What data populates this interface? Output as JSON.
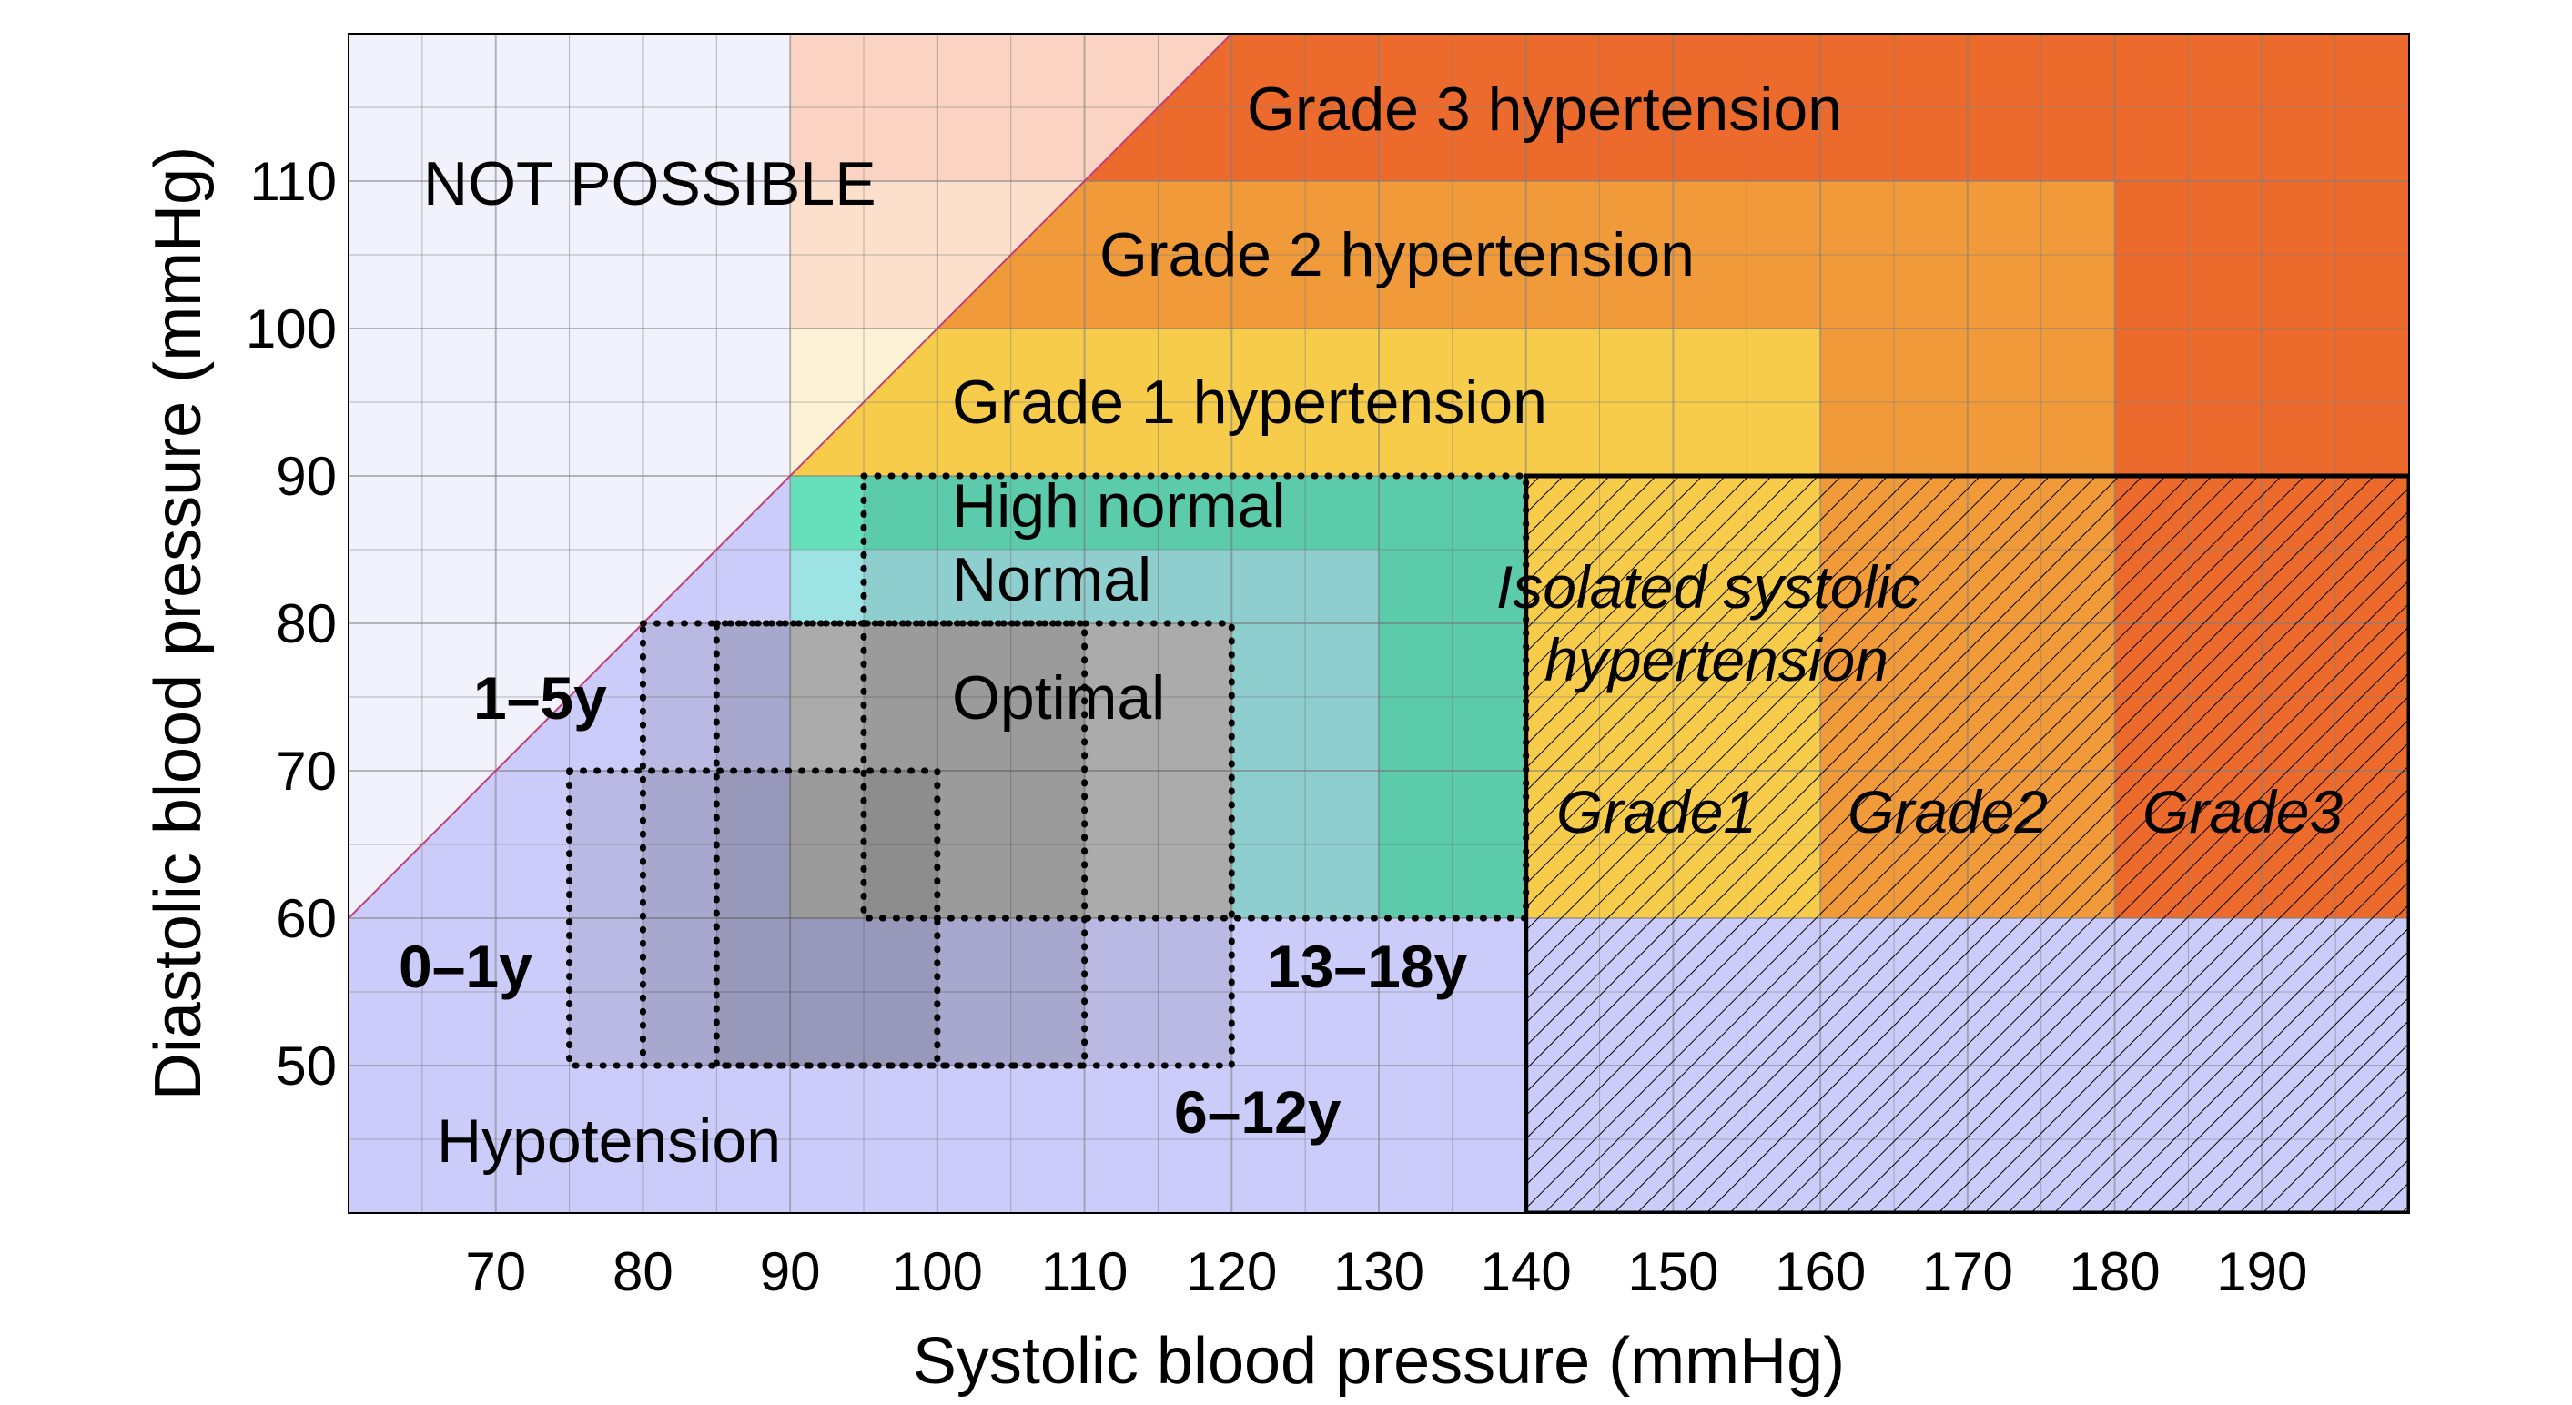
{
  "chart_data": {
    "type": "heatmap",
    "xlabel": "Systolic blood pressure (mmHg)",
    "ylabel": "Diastolic blood pressure (mmHg)",
    "xlim": [
      60,
      200
    ],
    "ylim": [
      40,
      120
    ],
    "x_ticks": [
      "70",
      "80",
      "90",
      "100",
      "110",
      "120",
      "130",
      "140",
      "150",
      "160",
      "170",
      "180",
      "190"
    ],
    "y_ticks": [
      "50",
      "60",
      "70",
      "80",
      "90",
      "100",
      "110"
    ],
    "grid": true,
    "regions": [
      {
        "label": "Hypotension",
        "x": [
          60,
          200
        ],
        "y": [
          40,
          60
        ],
        "color": "#ccccfa"
      },
      {
        "label": "Optimal",
        "x": [
          90,
          120
        ],
        "y": [
          60,
          80
        ],
        "color": "#cfcfcf"
      },
      {
        "label": "Normal",
        "x": [
          90,
          130
        ],
        "y": [
          60,
          85
        ],
        "color": "#9ee3e3"
      },
      {
        "label": "High normal",
        "x": [
          90,
          140
        ],
        "y": [
          60,
          90
        ],
        "color": "#66e0bb"
      },
      {
        "label": "Grade 1 hypertension",
        "x": [
          90,
          160
        ],
        "y": [
          60,
          100
        ],
        "color": "#f7cc4b"
      },
      {
        "label": "Grade 2 hypertension",
        "x": [
          90,
          180
        ],
        "y": [
          60,
          110
        ],
        "color": "#f09a3a"
      },
      {
        "label": "Grade 3 hypertension",
        "x": [
          90,
          200
        ],
        "y": [
          60,
          120
        ],
        "color": "#ec6a2c"
      },
      {
        "label": "NOT POSSIBLE",
        "boundary": "diastolic > systolic - 60"
      }
    ],
    "isolated_systolic_hypertension": {
      "label": "Isolated systolic hypertension",
      "x": [
        140,
        200
      ],
      "y": [
        40,
        90
      ],
      "grades": [
        "Grade1",
        "Grade2",
        "Grade3"
      ]
    },
    "age_groups": [
      {
        "label": "0–1y",
        "x": [
          75,
          100
        ],
        "y": [
          50,
          70
        ]
      },
      {
        "label": "1–5y",
        "x": [
          80,
          110
        ],
        "y": [
          50,
          80
        ]
      },
      {
        "label": "6–12y",
        "x": [
          85,
          120
        ],
        "y": [
          50,
          80
        ]
      },
      {
        "label": "13–18y",
        "x": [
          95,
          140
        ],
        "y": [
          60,
          90
        ]
      }
    ]
  },
  "colors": {
    "not_possible": "#f2f2fc",
    "diag_below_90": "#ccccfa",
    "grid": "#808080",
    "diagonal_line": "#c0407a"
  }
}
